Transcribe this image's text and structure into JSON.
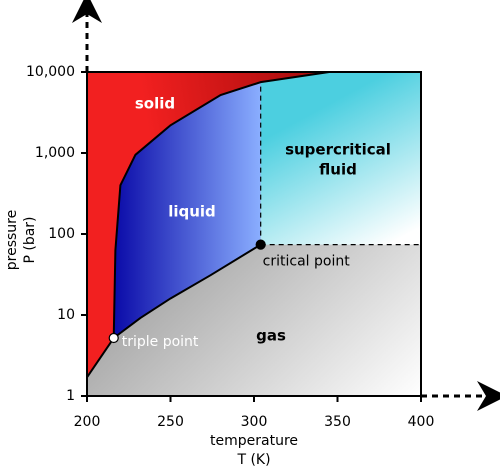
{
  "chart_data": {
    "type": "phase",
    "xlabel": [
      "temperature",
      "T (K)"
    ],
    "ylabel": [
      "pressure",
      "P (bar)"
    ],
    "xlim": [
      200,
      400
    ],
    "xticks": [
      200,
      250,
      300,
      350,
      400
    ],
    "ylim": [
      1,
      10000
    ],
    "log_y": true,
    "yticks": [
      1,
      10,
      100,
      {
        "value": 1000,
        "label": "1,000"
      },
      {
        "value": 10000,
        "label": "10,000"
      }
    ],
    "curves": [
      {
        "x": [
          200,
          216
        ],
        "y": [
          1.7,
          5.2
        ]
      },
      {
        "x": [
          216,
          217,
          220,
          229,
          250,
          280,
          304,
          345
        ],
        "y": [
          5.2,
          63,
          400,
          950,
          2200,
          5200,
          7500,
          10000
        ]
      },
      {
        "x": [
          216,
          232,
          250,
          274,
          304
        ],
        "y": [
          5.2,
          9.2,
          16,
          31,
          74
        ]
      }
    ],
    "points": [
      {
        "label": "triple point",
        "x": 216,
        "y": 5.2
      },
      {
        "label": "critical point",
        "x": 304,
        "y": 74
      }
    ],
    "region_labels": [
      "solid",
      "liquid",
      "supercritical",
      "fluid",
      "gas"
    ]
  }
}
